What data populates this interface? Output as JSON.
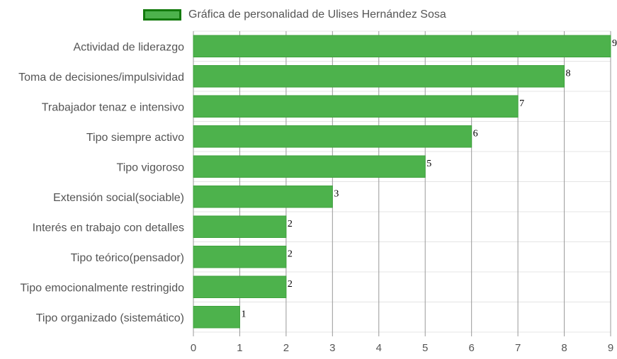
{
  "chart_data": {
    "type": "bar",
    "orientation": "horizontal",
    "categories": [
      "Actividad de liderazgo",
      "Toma de decisiones/impulsividad",
      "Trabajador tenaz e intensivo",
      "Tipo siempre activo",
      "Tipo vigoroso",
      "Extensión social(sociable)",
      "Interés en trabajo con detalles",
      "Tipo teórico(pensador)",
      "Tipo emocionalmente restringido",
      "Tipo organizado (sistemático)"
    ],
    "series": [
      {
        "name": "Gráfica de personalidad de Ulises Hernández Sosa",
        "values": [
          9,
          8,
          7,
          6,
          5,
          3,
          2,
          2,
          2,
          1
        ]
      }
    ],
    "xlim": [
      0,
      9
    ],
    "x_ticks": [
      "0",
      "1",
      "2",
      "3",
      "4",
      "5",
      "6",
      "7",
      "8",
      "9"
    ],
    "grid": true,
    "legend_position": "top",
    "colors": {
      "bar_fill": "#4db24c",
      "bar_border": "#3ea33d",
      "legend_border": "#137a0d",
      "grid": "#999999"
    }
  }
}
